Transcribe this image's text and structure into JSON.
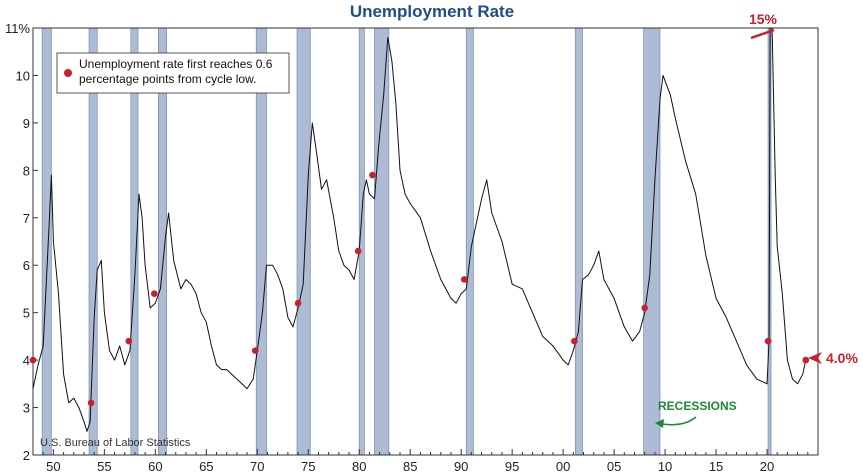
{
  "chart_data": {
    "type": "line",
    "title": "Unemployment Rate",
    "source": "U.S. Bureau of Labor Statistics",
    "y_tick_labels": [
      "11%",
      "10",
      "9",
      "8",
      "7",
      "6",
      "5",
      "4",
      "3",
      "2"
    ],
    "y_ticks": [
      11,
      10,
      9,
      8,
      7,
      6,
      5,
      4,
      3,
      2
    ],
    "ylim": [
      2,
      11
    ],
    "xlim": [
      1948,
      2025
    ],
    "x_tick_labels": [
      "50",
      "55",
      "60",
      "65",
      "70",
      "75",
      "80",
      "85",
      "90",
      "95",
      "00",
      "05",
      "10",
      "15",
      "20"
    ],
    "x_ticks": [
      1950,
      1955,
      1960,
      1965,
      1970,
      1975,
      1980,
      1985,
      1990,
      1995,
      2000,
      2005,
      2010,
      2015,
      2020
    ],
    "legend": "Unemployment rate first reaches 0.6 percentage points from cycle low.",
    "annotations": {
      "peak_label": "15%",
      "latest_label": "4.0%",
      "recessions_label": "RECESSIONS"
    },
    "recessions": [
      [
        1948.9,
        1949.8
      ],
      [
        1953.5,
        1954.3
      ],
      [
        1957.6,
        1958.3
      ],
      [
        1960.3,
        1961.1
      ],
      [
        1969.9,
        1970.9
      ],
      [
        1973.9,
        1975.2
      ],
      [
        1980.0,
        1980.5
      ],
      [
        1981.5,
        1982.9
      ],
      [
        1990.5,
        1991.2
      ],
      [
        2001.2,
        2001.9
      ],
      [
        2007.9,
        2009.5
      ],
      [
        2020.1,
        2020.3
      ]
    ],
    "series": [
      {
        "values": [
          [
            1948.0,
            3.4
          ],
          [
            1948.5,
            3.9
          ],
          [
            1949.0,
            4.3
          ],
          [
            1949.5,
            6.5
          ],
          [
            1949.8,
            7.9
          ],
          [
            1950.0,
            6.5
          ],
          [
            1950.5,
            5.4
          ],
          [
            1951.0,
            3.7
          ],
          [
            1951.5,
            3.1
          ],
          [
            1952.0,
            3.2
          ],
          [
            1952.5,
            3.0
          ],
          [
            1953.0,
            2.7
          ],
          [
            1953.3,
            2.5
          ],
          [
            1953.6,
            2.7
          ],
          [
            1954.0,
            4.9
          ],
          [
            1954.3,
            5.9
          ],
          [
            1954.7,
            6.1
          ],
          [
            1955.0,
            5.0
          ],
          [
            1955.5,
            4.2
          ],
          [
            1956.0,
            4.0
          ],
          [
            1956.5,
            4.3
          ],
          [
            1957.0,
            3.9
          ],
          [
            1957.5,
            4.2
          ],
          [
            1958.0,
            5.8
          ],
          [
            1958.4,
            7.5
          ],
          [
            1958.7,
            7.0
          ],
          [
            1959.0,
            6.0
          ],
          [
            1959.5,
            5.1
          ],
          [
            1960.0,
            5.2
          ],
          [
            1960.5,
            5.5
          ],
          [
            1961.0,
            6.6
          ],
          [
            1961.3,
            7.1
          ],
          [
            1961.8,
            6.1
          ],
          [
            1962.5,
            5.5
          ],
          [
            1963.0,
            5.7
          ],
          [
            1963.5,
            5.6
          ],
          [
            1964.0,
            5.4
          ],
          [
            1964.5,
            5.0
          ],
          [
            1965.0,
            4.8
          ],
          [
            1965.5,
            4.3
          ],
          [
            1966.0,
            3.9
          ],
          [
            1966.5,
            3.8
          ],
          [
            1967.0,
            3.8
          ],
          [
            1968.0,
            3.6
          ],
          [
            1969.0,
            3.4
          ],
          [
            1969.6,
            3.6
          ],
          [
            1970.0,
            4.2
          ],
          [
            1970.5,
            5.0
          ],
          [
            1970.9,
            6.0
          ],
          [
            1971.5,
            6.0
          ],
          [
            1972.0,
            5.8
          ],
          [
            1972.5,
            5.5
          ],
          [
            1973.0,
            4.9
          ],
          [
            1973.5,
            4.7
          ],
          [
            1974.0,
            5.1
          ],
          [
            1974.5,
            5.6
          ],
          [
            1975.0,
            7.9
          ],
          [
            1975.4,
            9.0
          ],
          [
            1975.8,
            8.4
          ],
          [
            1976.3,
            7.6
          ],
          [
            1976.8,
            7.8
          ],
          [
            1977.5,
            7.0
          ],
          [
            1978.0,
            6.3
          ],
          [
            1978.5,
            6.0
          ],
          [
            1979.0,
            5.9
          ],
          [
            1979.5,
            5.7
          ],
          [
            1980.0,
            6.3
          ],
          [
            1980.4,
            7.5
          ],
          [
            1980.7,
            7.8
          ],
          [
            1981.0,
            7.5
          ],
          [
            1981.5,
            7.4
          ],
          [
            1981.9,
            8.5
          ],
          [
            1982.4,
            9.6
          ],
          [
            1982.8,
            10.8
          ],
          [
            1983.2,
            10.3
          ],
          [
            1983.6,
            9.4
          ],
          [
            1984.0,
            8.0
          ],
          [
            1984.5,
            7.5
          ],
          [
            1985.0,
            7.3
          ],
          [
            1986.0,
            7.0
          ],
          [
            1987.0,
            6.3
          ],
          [
            1988.0,
            5.7
          ],
          [
            1989.0,
            5.3
          ],
          [
            1989.5,
            5.2
          ],
          [
            1990.0,
            5.4
          ],
          [
            1990.5,
            5.5
          ],
          [
            1991.0,
            6.4
          ],
          [
            1991.5,
            6.9
          ],
          [
            1992.0,
            7.4
          ],
          [
            1992.5,
            7.8
          ],
          [
            1993.0,
            7.1
          ],
          [
            1994.0,
            6.5
          ],
          [
            1995.0,
            5.6
          ],
          [
            1996.0,
            5.5
          ],
          [
            1997.0,
            5.0
          ],
          [
            1998.0,
            4.5
          ],
          [
            1999.0,
            4.3
          ],
          [
            2000.0,
            4.0
          ],
          [
            2000.5,
            3.9
          ],
          [
            2001.0,
            4.2
          ],
          [
            2001.5,
            4.6
          ],
          [
            2001.9,
            5.7
          ],
          [
            2002.5,
            5.8
          ],
          [
            2003.0,
            6.0
          ],
          [
            2003.5,
            6.3
          ],
          [
            2004.0,
            5.7
          ],
          [
            2005.0,
            5.3
          ],
          [
            2006.0,
            4.7
          ],
          [
            2006.8,
            4.4
          ],
          [
            2007.5,
            4.6
          ],
          [
            2008.0,
            5.0
          ],
          [
            2008.5,
            5.8
          ],
          [
            2009.0,
            7.8
          ],
          [
            2009.5,
            9.5
          ],
          [
            2009.8,
            10.0
          ],
          [
            2010.5,
            9.6
          ],
          [
            2011.0,
            9.1
          ],
          [
            2012.0,
            8.2
          ],
          [
            2013.0,
            7.5
          ],
          [
            2014.0,
            6.2
          ],
          [
            2015.0,
            5.3
          ],
          [
            2016.0,
            4.9
          ],
          [
            2017.0,
            4.4
          ],
          [
            2018.0,
            3.9
          ],
          [
            2019.0,
            3.6
          ],
          [
            2020.0,
            3.5
          ],
          [
            2020.2,
            4.4
          ],
          [
            2020.3,
            14.8
          ],
          [
            2020.5,
            11.0
          ],
          [
            2020.8,
            7.9
          ],
          [
            2021.0,
            6.4
          ],
          [
            2021.5,
            5.4
          ],
          [
            2022.0,
            4.0
          ],
          [
            2022.5,
            3.6
          ],
          [
            2023.0,
            3.5
          ],
          [
            2023.5,
            3.7
          ],
          [
            2023.8,
            4.0
          ]
        ]
      }
    ],
    "markers": [
      [
        1948.0,
        4.0
      ],
      [
        1953.7,
        3.1
      ],
      [
        1957.4,
        4.4
      ],
      [
        1959.9,
        5.4
      ],
      [
        1969.8,
        4.2
      ],
      [
        1974.0,
        5.2
      ],
      [
        1979.9,
        6.3
      ],
      [
        1981.3,
        7.9
      ],
      [
        1990.3,
        5.7
      ],
      [
        2001.1,
        4.4
      ],
      [
        2008.0,
        5.1
      ],
      [
        2020.1,
        4.4
      ],
      [
        2023.8,
        4.0
      ]
    ]
  }
}
